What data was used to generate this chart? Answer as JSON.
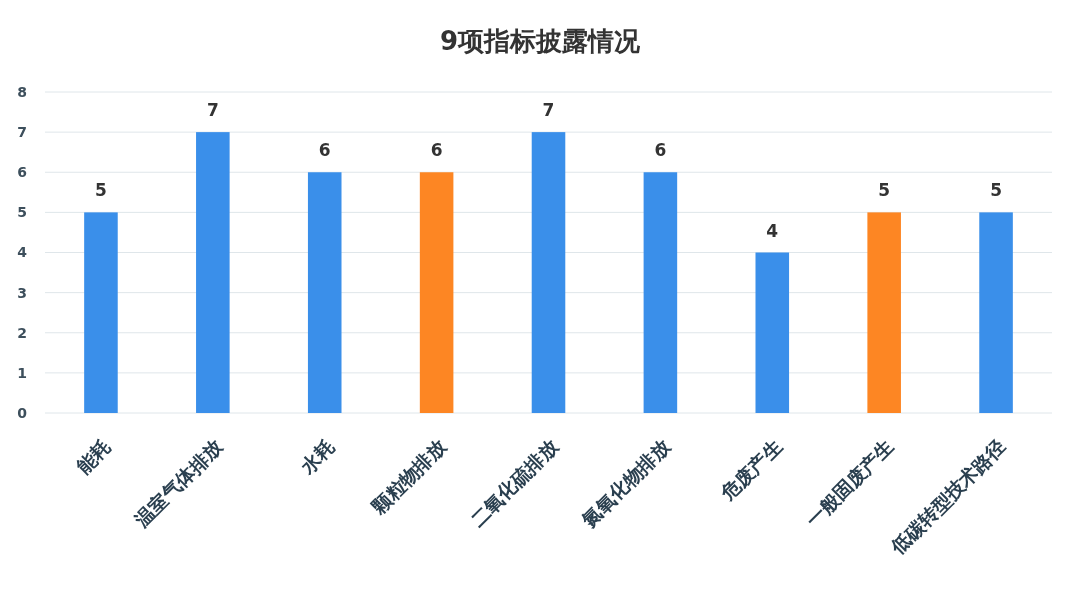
{
  "chart_data": {
    "type": "bar",
    "title": "9项指标披露情况",
    "categories": [
      "能耗",
      "温室气体排放",
      "水耗",
      "颗粒物排放",
      "二氧化硫排放",
      "氮氧化物排放",
      "危废产生",
      "一般固废产生",
      "低碳转型技术路径"
    ],
    "values": [
      5,
      7,
      6,
      6,
      7,
      6,
      4,
      5,
      5
    ],
    "colors": [
      "#3a8fea",
      "#3a8fea",
      "#3a8fea",
      "#fd8623",
      "#3a8fea",
      "#3a8fea",
      "#3a8fea",
      "#fd8623",
      "#3a8fea"
    ],
    "ylim": [
      0,
      8
    ],
    "yticks": [
      0,
      1,
      2,
      3,
      4,
      5,
      6,
      7,
      8
    ],
    "grid": "y",
    "data_labels": true
  }
}
